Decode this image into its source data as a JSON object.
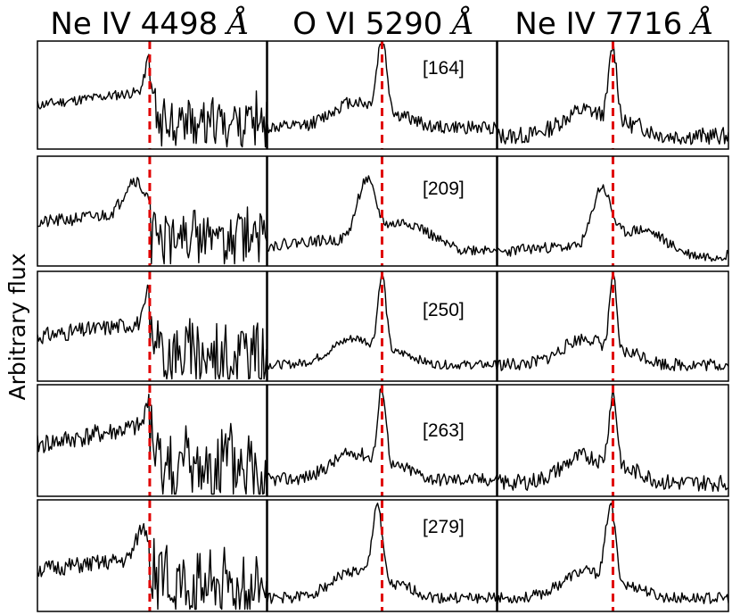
{
  "chart_data": {
    "type": "line",
    "ylabel": "Arbitrary flux",
    "xaxis_ticks_shown": false,
    "yaxis_ticks_shown": false,
    "grid": false,
    "reference_line_color": "#e00000",
    "trace_color": "#000000",
    "columns": [
      {
        "title": "Ne IV 4498 Å",
        "text": "Ne IV 4498 ",
        "unit_glyph": "Å"
      },
      {
        "title": "O VI 5290 Å",
        "text": "O VI 5290 ",
        "unit_glyph": "Å"
      },
      {
        "title": "Ne IV 7716 Å",
        "text": "Ne IV 7716 ",
        "unit_glyph": "Å"
      }
    ],
    "rows": [
      "[164]",
      "[209]",
      "[250]",
      "[263]",
      "[279]"
    ],
    "panels": [
      {
        "row": 0,
        "col": 0,
        "seed": 11,
        "features": [
          {
            "c": 0.49,
            "w": 0.025,
            "a": 0.95
          }
        ],
        "noise": 0.16,
        "lvl": 0.45,
        "mode": "edge",
        "ref": 0.49
      },
      {
        "row": 0,
        "col": 1,
        "seed": 12,
        "features": [
          {
            "c": 0.5,
            "w": 0.03,
            "a": 1.0
          }
        ],
        "noise": 0.12,
        "lvl": 0.2,
        "mode": "peak",
        "ref": 0.5
      },
      {
        "row": 0,
        "col": 2,
        "seed": 13,
        "features": [
          {
            "c": 0.5,
            "w": 0.025,
            "a": 1.0
          }
        ],
        "noise": 0.16,
        "lvl": 0.12,
        "mode": "peak",
        "ref": 0.5
      },
      {
        "row": 1,
        "col": 0,
        "seed": 21,
        "features": [
          {
            "c": 0.42,
            "w": 0.06,
            "a": 0.85
          }
        ],
        "noise": 0.2,
        "lvl": 0.4,
        "mode": "edge",
        "ref": 0.49
      },
      {
        "row": 1,
        "col": 1,
        "seed": 22,
        "features": [
          {
            "c": 0.43,
            "w": 0.035,
            "a": 0.95
          }
        ],
        "noise": 0.1,
        "lvl": 0.18,
        "mode": "broad",
        "ref": 0.5
      },
      {
        "row": 1,
        "col": 2,
        "seed": 23,
        "features": [
          {
            "c": 0.45,
            "w": 0.035,
            "a": 0.95
          }
        ],
        "noise": 0.1,
        "lvl": 0.12,
        "mode": "broad",
        "ref": 0.5
      },
      {
        "row": 2,
        "col": 0,
        "seed": 31,
        "features": [
          {
            "c": 0.49,
            "w": 0.025,
            "a": 0.9
          }
        ],
        "noise": 0.25,
        "lvl": 0.45,
        "mode": "edge",
        "ref": 0.49
      },
      {
        "row": 2,
        "col": 1,
        "seed": 32,
        "features": [
          {
            "c": 0.5,
            "w": 0.025,
            "a": 1.0
          }
        ],
        "noise": 0.08,
        "lvl": 0.15,
        "mode": "peak",
        "ref": 0.5
      },
      {
        "row": 2,
        "col": 2,
        "seed": 33,
        "features": [
          {
            "c": 0.5,
            "w": 0.02,
            "a": 1.0
          }
        ],
        "noise": 0.12,
        "lvl": 0.15,
        "mode": "peak",
        "ref": 0.5
      },
      {
        "row": 3,
        "col": 0,
        "seed": 41,
        "features": [
          {
            "c": 0.49,
            "w": 0.02,
            "a": 0.9
          }
        ],
        "noise": 0.3,
        "lvl": 0.6,
        "mode": "edge",
        "ref": 0.49
      },
      {
        "row": 3,
        "col": 1,
        "seed": 42,
        "features": [
          {
            "c": 0.5,
            "w": 0.025,
            "a": 1.0
          }
        ],
        "noise": 0.12,
        "lvl": 0.15,
        "mode": "peak",
        "ref": 0.5
      },
      {
        "row": 3,
        "col": 2,
        "seed": 43,
        "features": [
          {
            "c": 0.5,
            "w": 0.025,
            "a": 0.95
          }
        ],
        "noise": 0.15,
        "lvl": 0.12,
        "mode": "peak",
        "ref": 0.5
      },
      {
        "row": 4,
        "col": 0,
        "seed": 51,
        "features": [
          {
            "c": 0.46,
            "w": 0.04,
            "a": 0.8
          }
        ],
        "noise": 0.25,
        "lvl": 0.35,
        "mode": "edge",
        "ref": 0.49
      },
      {
        "row": 4,
        "col": 1,
        "seed": 52,
        "features": [
          {
            "c": 0.48,
            "w": 0.03,
            "a": 1.0
          }
        ],
        "noise": 0.1,
        "lvl": 0.12,
        "mode": "peak",
        "ref": 0.5
      },
      {
        "row": 4,
        "col": 2,
        "seed": 53,
        "features": [
          {
            "c": 0.49,
            "w": 0.03,
            "a": 1.0
          }
        ],
        "noise": 0.1,
        "lvl": 0.12,
        "mode": "peak",
        "ref": 0.5
      }
    ]
  }
}
